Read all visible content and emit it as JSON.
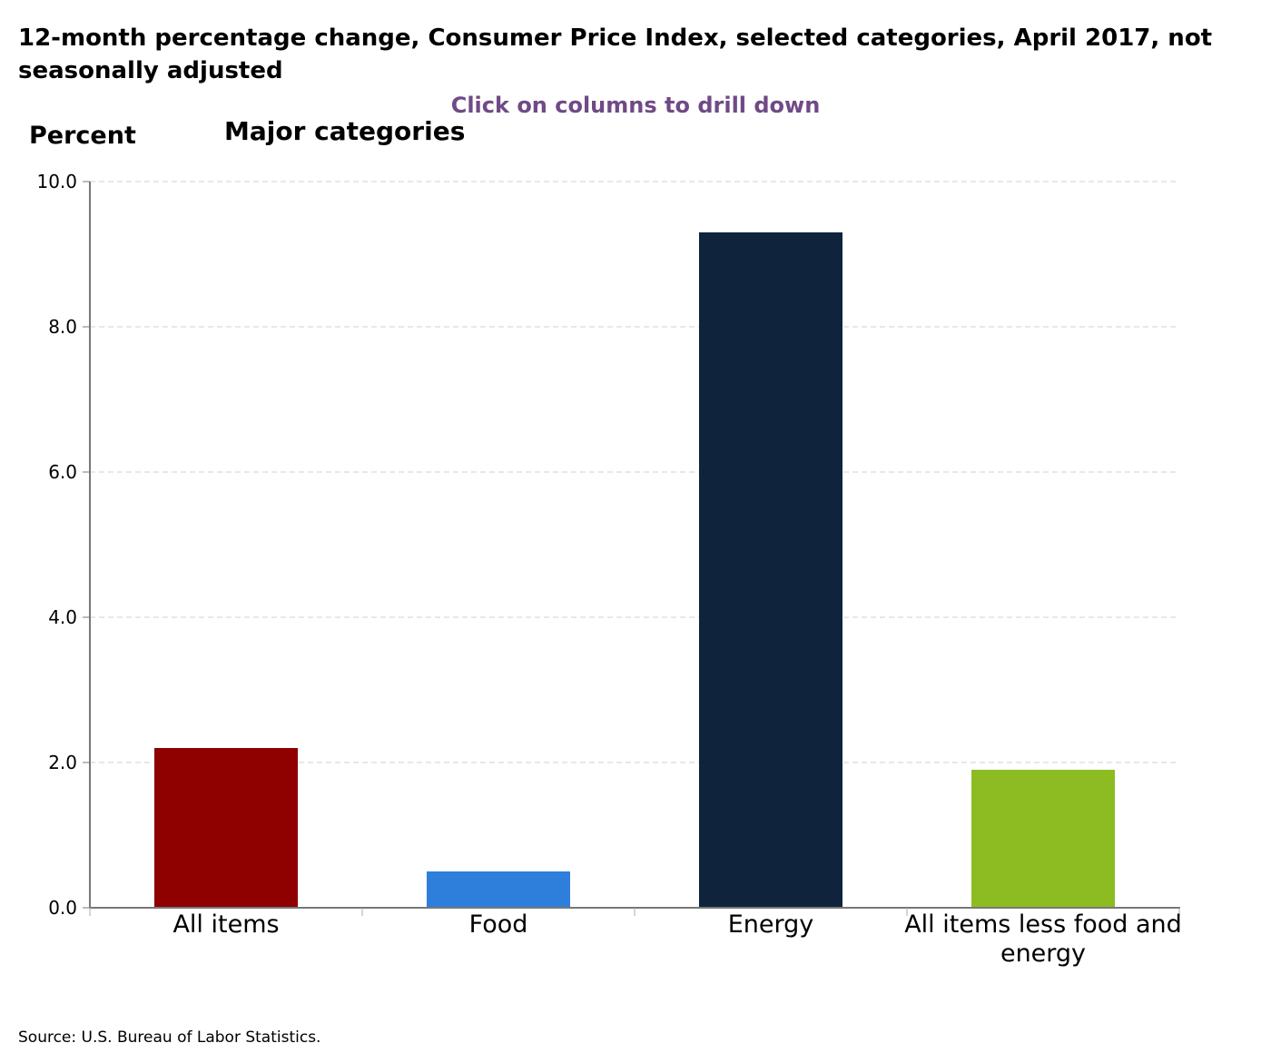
{
  "chart_data": {
    "type": "bar",
    "title_lines": [
      "12-month percentage change, Consumer Price Index, selected categories, April 2017, not",
      "seasonally adjusted"
    ],
    "subtitle": "Major categories",
    "hint": "Click on columns to drill down",
    "ylabel": "Percent",
    "categories": [
      "All items",
      "Food",
      "Energy",
      "All items less food and energy"
    ],
    "category_label_lines": [
      [
        "All items"
      ],
      [
        "Food"
      ],
      [
        "Energy"
      ],
      [
        "All items less food and",
        "energy"
      ]
    ],
    "values": [
      2.2,
      0.5,
      9.3,
      1.9
    ],
    "colors": [
      "#8f0000",
      "#2e7fdb",
      "#0f243c",
      "#8cbc22"
    ],
    "ylim": [
      0,
      10
    ],
    "yticks": [
      "0.0",
      "2.0",
      "4.0",
      "6.0",
      "8.0",
      "10.0"
    ],
    "grid": true,
    "source": "Source: U.S. Bureau of Labor Statistics."
  }
}
